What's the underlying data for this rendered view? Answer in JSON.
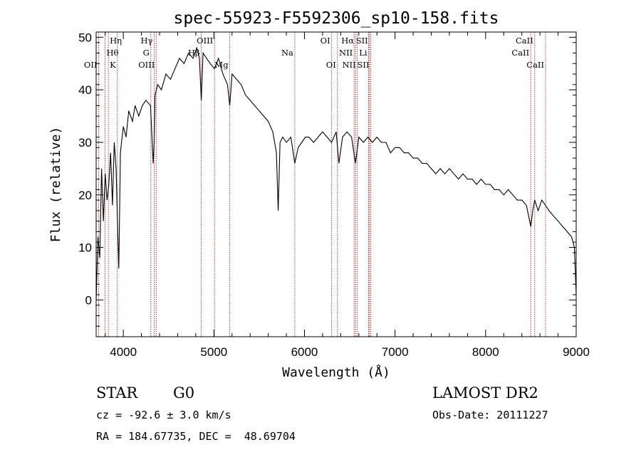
{
  "chart_data": {
    "type": "line",
    "title": "spec-55923-F5592306_sp10-158.fits",
    "xlabel": "Wavelength (Å)",
    "ylabel": "Flux (relative)",
    "xlim": [
      3700,
      9000
    ],
    "ylim": [
      -7,
      51
    ],
    "x_ticks": [
      4000,
      5000,
      6000,
      7000,
      8000,
      9000
    ],
    "y_ticks": [
      0,
      10,
      20,
      30,
      40,
      50
    ],
    "grid": false,
    "line_color": "#000000",
    "marker_color": "#b22222",
    "series": [
      {
        "x": [
          3700,
          3720,
          3740,
          3760,
          3780,
          3800,
          3820,
          3840,
          3860,
          3880,
          3900,
          3920,
          3935,
          3950,
          3968,
          3980,
          4000,
          4030,
          4060,
          4101,
          4130,
          4170,
          4210,
          4250,
          4300,
          4330,
          4340,
          4350,
          4380,
          4420,
          4470,
          4520,
          4570,
          4620,
          4670,
          4720,
          4770,
          4810,
          4840,
          4861,
          4880,
          4920,
          4960,
          5007,
          5050,
          5100,
          5150,
          5175,
          5200,
          5250,
          5300,
          5350,
          5400,
          5450,
          5500,
          5550,
          5600,
          5650,
          5690,
          5710,
          5730,
          5760,
          5800,
          5850,
          5893,
          5930,
          5970,
          6010,
          6050,
          6100,
          6150,
          6200,
          6250,
          6300,
          6350,
          6380,
          6420,
          6470,
          6520,
          6563,
          6600,
          6650,
          6700,
          6750,
          6800,
          6850,
          6900,
          6950,
          7000,
          7050,
          7100,
          7150,
          7200,
          7250,
          7300,
          7350,
          7400,
          7450,
          7500,
          7550,
          7600,
          7650,
          7700,
          7750,
          7800,
          7850,
          7900,
          7950,
          8000,
          8050,
          8100,
          8150,
          8200,
          8250,
          8300,
          8350,
          8400,
          8450,
          8498,
          8520,
          8542,
          8580,
          8620,
          8662,
          8700,
          8750,
          8800,
          8850,
          8900,
          8950,
          8980,
          9000
        ],
        "y": [
          0,
          12,
          8,
          25,
          15,
          24,
          19,
          22,
          28,
          18,
          30,
          25,
          15,
          6,
          28,
          30,
          33,
          31,
          36,
          34,
          37,
          35,
          37,
          38,
          37,
          26,
          30,
          39,
          41,
          40,
          43,
          42,
          44,
          46,
          45,
          47,
          46,
          48,
          46,
          38,
          47,
          46,
          45,
          44,
          46,
          43,
          41,
          37,
          43,
          42,
          41,
          39,
          38,
          37,
          36,
          35,
          34,
          32,
          28,
          17,
          30,
          31,
          30,
          31,
          26,
          29,
          30,
          31,
          31,
          30,
          31,
          32,
          31,
          30,
          32,
          26,
          31,
          32,
          31,
          26,
          31,
          30,
          31,
          30,
          31,
          30,
          30,
          28,
          29,
          29,
          28,
          28,
          27,
          27,
          26,
          26,
          25,
          24,
          25,
          24,
          25,
          24,
          23,
          24,
          23,
          23,
          22,
          23,
          22,
          22,
          21,
          21,
          20,
          21,
          20,
          19,
          19,
          18,
          14,
          17,
          19,
          17,
          19,
          18,
          17,
          16,
          15,
          14,
          13,
          12,
          10,
          1
        ]
      }
    ],
    "line_markers": [
      {
        "label": "Hη",
        "x": 3835,
        "row": 0,
        "pos": "right"
      },
      {
        "label": "Hθ",
        "x": 3798,
        "row": 1,
        "pos": "right"
      },
      {
        "label": "OII",
        "x": 3727,
        "row": 2,
        "pos": "left"
      },
      {
        "label": "K",
        "x": 3934,
        "row": 2,
        "pos": "left"
      },
      {
        "label": "Hγ",
        "x": 4340,
        "row": 0,
        "pos": "left"
      },
      {
        "label": "G",
        "x": 4304,
        "row": 1,
        "pos": "left"
      },
      {
        "label": "OIII",
        "x": 4363,
        "row": 2,
        "pos": "left"
      },
      {
        "label": "OIII",
        "x": 5007,
        "row": 0,
        "pos": "left"
      },
      {
        "label": "Hβ",
        "x": 4861,
        "row": 1,
        "pos": "left"
      },
      {
        "label": "Mg",
        "x": 5175,
        "row": 2,
        "pos": "left"
      },
      {
        "label": "Na",
        "x": 5893,
        "row": 1,
        "pos": "left"
      },
      {
        "label": "OI",
        "x": 6300,
        "row": 0,
        "pos": "left"
      },
      {
        "label": "OI",
        "x": 6364,
        "row": 2,
        "pos": "left"
      },
      {
        "label": "Hα",
        "x": 6563,
        "row": 0,
        "pos": "left"
      },
      {
        "label": "NII",
        "x": 6548,
        "row": 1,
        "pos": "left"
      },
      {
        "label": "NII",
        "x": 6583,
        "row": 2,
        "pos": "left"
      },
      {
        "label": "SII",
        "x": 6717,
        "row": 0,
        "pos": "left"
      },
      {
        "label": "Li",
        "x": 6708,
        "row": 1,
        "pos": "left"
      },
      {
        "label": "SII",
        "x": 6731,
        "row": 2,
        "pos": "left"
      },
      {
        "label": "CaII",
        "x": 8542,
        "row": 0,
        "pos": "left"
      },
      {
        "label": "CaII",
        "x": 8498,
        "row": 1,
        "pos": "left"
      },
      {
        "label": "CaII",
        "x": 8662,
        "row": 2,
        "pos": "left"
      }
    ]
  },
  "info": {
    "object_class": "STAR",
    "subclass": "G0",
    "survey": "LAMOST DR2",
    "cz": "cz = -92.6 ± 3.0 km/s",
    "obs_date": "Obs-Date: 20111227",
    "coords": "RA = 184.67735, DEC =  48.69704"
  }
}
